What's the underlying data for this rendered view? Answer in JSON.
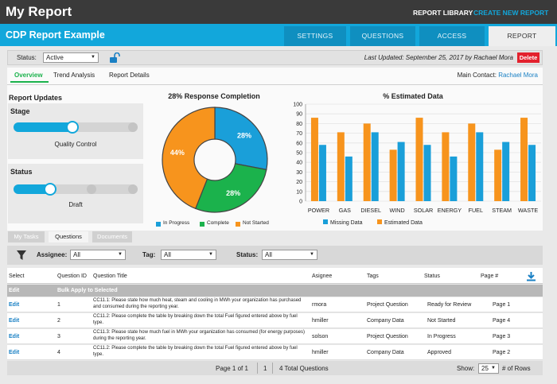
{
  "app": {
    "title": "My Report",
    "report_library": "REPORT LIBRARY",
    "create_new": "CREATE NEW REPORT"
  },
  "report": {
    "name": "CDP Report Example"
  },
  "tabs": [
    "SETTINGS",
    "QUESTIONS",
    "ACCESS",
    "REPORT"
  ],
  "statusbar": {
    "status_label": "Status:",
    "status_value": "Active",
    "last_updated": "Last Updated: September 25, 2017 by Rachael Mora",
    "delete_label": "Delete"
  },
  "subtabs": [
    "Overview",
    "Trend Analysis",
    "Report Details"
  ],
  "main_contact": {
    "label": "Main Contact:",
    "name": "Rachael Mora"
  },
  "updates": {
    "title": "Report Updates",
    "stage": {
      "label": "Stage",
      "value": "Quality Control",
      "level": 0.5
    },
    "status": {
      "label": "Status",
      "value": "Draft",
      "level": 0.25
    }
  },
  "colors": {
    "blue": "#1a9fd9",
    "green": "#1bb24c",
    "orange": "#f7941d",
    "red": "#e3212d"
  },
  "chart_data": [
    {
      "type": "pie",
      "title": "28% Response Completion",
      "labels": [
        "In Progress",
        "Complete",
        "Not Started"
      ],
      "values": [
        28,
        28,
        44
      ],
      "data_labels": [
        "28%",
        "28%",
        "44%"
      ]
    },
    {
      "type": "bar",
      "title": "% Estimated Data",
      "categories": [
        "POWER",
        "GAS",
        "DIESEL",
        "WIND",
        "SOLAR",
        "ENERGY",
        "FUEL",
        "STEAM",
        "WASTE"
      ],
      "ylim": [
        0,
        100
      ],
      "yticks": [
        0,
        10,
        20,
        30,
        40,
        50,
        60,
        70,
        80,
        90,
        100
      ],
      "series": [
        {
          "name": "Estimated Data",
          "values": [
            86,
            71,
            80,
            53,
            86,
            71,
            80,
            53,
            86
          ]
        },
        {
          "name": "Missing Data",
          "values": [
            58,
            46,
            71,
            61,
            58,
            46,
            71,
            61,
            58
          ]
        }
      ],
      "legend": "bottom"
    }
  ],
  "lower_tabs": [
    "My Tasks",
    "Questions",
    "Documents"
  ],
  "filters": {
    "assignee_label": "Assignee:",
    "assignee_value": "All",
    "tag_label": "Tag:",
    "tag_value": "All",
    "status_label": "Status:",
    "status_value": "All"
  },
  "table": {
    "headers": [
      "Select",
      "Question ID",
      "Question Title",
      "Asignee",
      "Tags",
      "Status",
      "Page #"
    ],
    "bulk": {
      "edit": "Edit",
      "label": "Bulk Apply to Selected"
    },
    "rows": [
      {
        "edit": "Edit",
        "id": "1",
        "title": "CC11.1: Please state how much heat, steam and cooling in MWh your organization has purchased and consumed during the reporting year.",
        "assignee": "rmora",
        "tag": "Project Question",
        "status": "Ready for Review",
        "page": "Page 1"
      },
      {
        "edit": "Edit",
        "id": "2",
        "title": "CC11.2: Please complete the table by breaking down the total Fuel figured entered above by fuel type.",
        "assignee": "hmiller",
        "tag": "Company Data",
        "status": "Not Started",
        "page": "Page 4"
      },
      {
        "edit": "Edit",
        "id": "3",
        "title": "CC11.3: Please state how much fuel in MWh your organization has consumed (for energy purposes) during the reporting year.",
        "assignee": "solson",
        "tag": "Project Question",
        "status": "In Progress",
        "page": "Page 3"
      },
      {
        "edit": "Edit",
        "id": "4",
        "title": "CC11.2: Please complete the table by breaking down the total Fuel figured entered above by fuel type.",
        "assignee": "hmiller",
        "tag": "Company Data",
        "status": "Approved",
        "page": "Page 2"
      }
    ]
  },
  "pager": {
    "page": "Page 1 of 1",
    "current": "1",
    "total": "4 Total Questions",
    "show_label": "Show:",
    "show_value": "25",
    "rows_label": "# of Rows"
  }
}
